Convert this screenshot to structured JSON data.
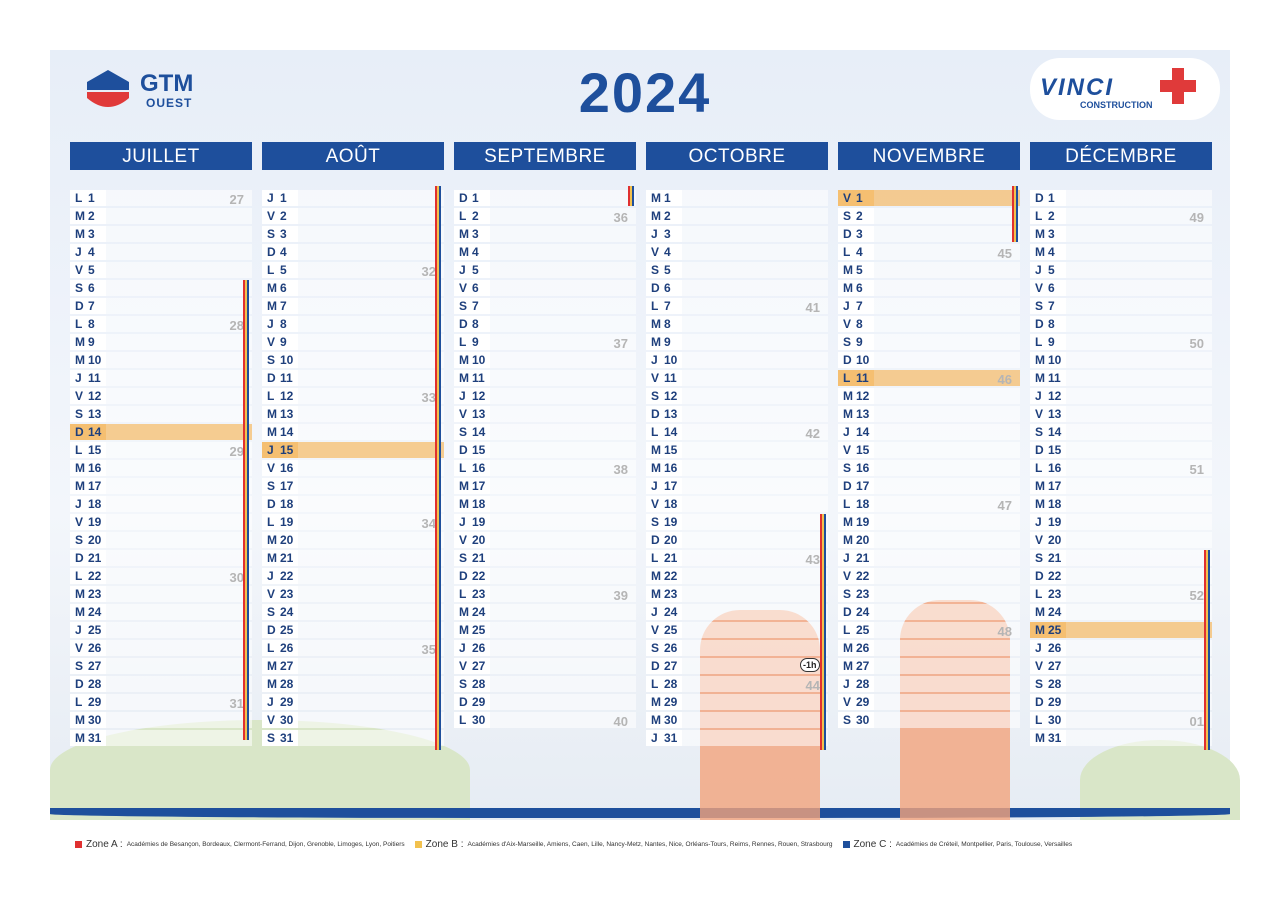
{
  "header": {
    "left_logo": {
      "name": "GTM",
      "sub": "OUEST"
    },
    "year": "2024",
    "right_logo": {
      "name": "VINCI",
      "sub": "CONSTRUCTION"
    }
  },
  "months": [
    {
      "name": "JUILLET",
      "days": [
        {
          "d": "L",
          "n": 1,
          "w": "27"
        },
        {
          "d": "M",
          "n": 2
        },
        {
          "d": "M",
          "n": 3
        },
        {
          "d": "J",
          "n": 4
        },
        {
          "d": "V",
          "n": 5
        },
        {
          "d": "S",
          "n": 6
        },
        {
          "d": "D",
          "n": 7
        },
        {
          "d": "L",
          "n": 8,
          "w": "28"
        },
        {
          "d": "M",
          "n": 9
        },
        {
          "d": "M",
          "n": 10
        },
        {
          "d": "J",
          "n": 11
        },
        {
          "d": "V",
          "n": 12
        },
        {
          "d": "S",
          "n": 13
        },
        {
          "d": "D",
          "n": 14,
          "ferie": true
        },
        {
          "d": "L",
          "n": 15,
          "w": "29"
        },
        {
          "d": "M",
          "n": 16
        },
        {
          "d": "M",
          "n": 17
        },
        {
          "d": "J",
          "n": 18
        },
        {
          "d": "V",
          "n": 19
        },
        {
          "d": "S",
          "n": 20
        },
        {
          "d": "D",
          "n": 21
        },
        {
          "d": "L",
          "n": 22,
          "w": "30"
        },
        {
          "d": "M",
          "n": 23
        },
        {
          "d": "M",
          "n": 24
        },
        {
          "d": "J",
          "n": 25
        },
        {
          "d": "V",
          "n": 26
        },
        {
          "d": "S",
          "n": 27
        },
        {
          "d": "D",
          "n": 28
        },
        {
          "d": "L",
          "n": 29,
          "w": "31"
        },
        {
          "d": "M",
          "n": 30
        },
        {
          "d": "M",
          "n": 31
        }
      ]
    },
    {
      "name": "AOÛT",
      "days": [
        {
          "d": "J",
          "n": 1
        },
        {
          "d": "V",
          "n": 2
        },
        {
          "d": "S",
          "n": 3
        },
        {
          "d": "D",
          "n": 4
        },
        {
          "d": "L",
          "n": 5,
          "w": "32"
        },
        {
          "d": "M",
          "n": 6
        },
        {
          "d": "M",
          "n": 7
        },
        {
          "d": "J",
          "n": 8
        },
        {
          "d": "V",
          "n": 9
        },
        {
          "d": "S",
          "n": 10
        },
        {
          "d": "D",
          "n": 11
        },
        {
          "d": "L",
          "n": 12,
          "w": "33"
        },
        {
          "d": "M",
          "n": 13
        },
        {
          "d": "M",
          "n": 14
        },
        {
          "d": "J",
          "n": 15,
          "ferie": true
        },
        {
          "d": "V",
          "n": 16
        },
        {
          "d": "S",
          "n": 17
        },
        {
          "d": "D",
          "n": 18
        },
        {
          "d": "L",
          "n": 19,
          "w": "34"
        },
        {
          "d": "M",
          "n": 20
        },
        {
          "d": "M",
          "n": 21
        },
        {
          "d": "J",
          "n": 22
        },
        {
          "d": "V",
          "n": 23
        },
        {
          "d": "S",
          "n": 24
        },
        {
          "d": "D",
          "n": 25
        },
        {
          "d": "L",
          "n": 26,
          "w": "35"
        },
        {
          "d": "M",
          "n": 27
        },
        {
          "d": "M",
          "n": 28
        },
        {
          "d": "J",
          "n": 29
        },
        {
          "d": "V",
          "n": 30
        },
        {
          "d": "S",
          "n": 31
        }
      ]
    },
    {
      "name": "SEPTEMBRE",
      "days": [
        {
          "d": "D",
          "n": 1
        },
        {
          "d": "L",
          "n": 2,
          "w": "36"
        },
        {
          "d": "M",
          "n": 3
        },
        {
          "d": "M",
          "n": 4
        },
        {
          "d": "J",
          "n": 5
        },
        {
          "d": "V",
          "n": 6
        },
        {
          "d": "S",
          "n": 7
        },
        {
          "d": "D",
          "n": 8
        },
        {
          "d": "L",
          "n": 9,
          "w": "37"
        },
        {
          "d": "M",
          "n": 10
        },
        {
          "d": "M",
          "n": 11
        },
        {
          "d": "J",
          "n": 12
        },
        {
          "d": "V",
          "n": 13
        },
        {
          "d": "S",
          "n": 14
        },
        {
          "d": "D",
          "n": 15
        },
        {
          "d": "L",
          "n": 16,
          "w": "38"
        },
        {
          "d": "M",
          "n": 17
        },
        {
          "d": "M",
          "n": 18
        },
        {
          "d": "J",
          "n": 19
        },
        {
          "d": "V",
          "n": 20
        },
        {
          "d": "S",
          "n": 21
        },
        {
          "d": "D",
          "n": 22
        },
        {
          "d": "L",
          "n": 23,
          "w": "39"
        },
        {
          "d": "M",
          "n": 24
        },
        {
          "d": "M",
          "n": 25
        },
        {
          "d": "J",
          "n": 26
        },
        {
          "d": "V",
          "n": 27
        },
        {
          "d": "S",
          "n": 28
        },
        {
          "d": "D",
          "n": 29
        },
        {
          "d": "L",
          "n": 30,
          "w": "40"
        }
      ]
    },
    {
      "name": "OCTOBRE",
      "days": [
        {
          "d": "M",
          "n": 1
        },
        {
          "d": "M",
          "n": 2
        },
        {
          "d": "J",
          "n": 3
        },
        {
          "d": "V",
          "n": 4
        },
        {
          "d": "S",
          "n": 5
        },
        {
          "d": "D",
          "n": 6
        },
        {
          "d": "L",
          "n": 7,
          "w": "41"
        },
        {
          "d": "M",
          "n": 8
        },
        {
          "d": "M",
          "n": 9
        },
        {
          "d": "J",
          "n": 10
        },
        {
          "d": "V",
          "n": 11
        },
        {
          "d": "S",
          "n": 12
        },
        {
          "d": "D",
          "n": 13
        },
        {
          "d": "L",
          "n": 14,
          "w": "42"
        },
        {
          "d": "M",
          "n": 15
        },
        {
          "d": "M",
          "n": 16
        },
        {
          "d": "J",
          "n": 17
        },
        {
          "d": "V",
          "n": 18
        },
        {
          "d": "S",
          "n": 19
        },
        {
          "d": "D",
          "n": 20
        },
        {
          "d": "L",
          "n": 21,
          "w": "43"
        },
        {
          "d": "M",
          "n": 22
        },
        {
          "d": "M",
          "n": 23
        },
        {
          "d": "J",
          "n": 24
        },
        {
          "d": "V",
          "n": 25
        },
        {
          "d": "S",
          "n": 26
        },
        {
          "d": "D",
          "n": 27,
          "note": "-1h"
        },
        {
          "d": "L",
          "n": 28,
          "w": "44"
        },
        {
          "d": "M",
          "n": 29
        },
        {
          "d": "M",
          "n": 30
        },
        {
          "d": "J",
          "n": 31
        }
      ]
    },
    {
      "name": "NOVEMBRE",
      "days": [
        {
          "d": "V",
          "n": 1,
          "ferie": true
        },
        {
          "d": "S",
          "n": 2
        },
        {
          "d": "D",
          "n": 3
        },
        {
          "d": "L",
          "n": 4,
          "w": "45"
        },
        {
          "d": "M",
          "n": 5
        },
        {
          "d": "M",
          "n": 6
        },
        {
          "d": "J",
          "n": 7
        },
        {
          "d": "V",
          "n": 8
        },
        {
          "d": "S",
          "n": 9
        },
        {
          "d": "D",
          "n": 10
        },
        {
          "d": "L",
          "n": 11,
          "w": "46",
          "ferie": true
        },
        {
          "d": "M",
          "n": 12
        },
        {
          "d": "M",
          "n": 13
        },
        {
          "d": "J",
          "n": 14
        },
        {
          "d": "V",
          "n": 15
        },
        {
          "d": "S",
          "n": 16
        },
        {
          "d": "D",
          "n": 17
        },
        {
          "d": "L",
          "n": 18,
          "w": "47"
        },
        {
          "d": "M",
          "n": 19
        },
        {
          "d": "M",
          "n": 20
        },
        {
          "d": "J",
          "n": 21
        },
        {
          "d": "V",
          "n": 22
        },
        {
          "d": "S",
          "n": 23
        },
        {
          "d": "D",
          "n": 24
        },
        {
          "d": "L",
          "n": 25,
          "w": "48"
        },
        {
          "d": "M",
          "n": 26
        },
        {
          "d": "M",
          "n": 27
        },
        {
          "d": "J",
          "n": 28
        },
        {
          "d": "V",
          "n": 29
        },
        {
          "d": "S",
          "n": 30
        }
      ]
    },
    {
      "name": "DÉCEMBRE",
      "days": [
        {
          "d": "D",
          "n": 1
        },
        {
          "d": "L",
          "n": 2,
          "w": "49"
        },
        {
          "d": "M",
          "n": 3
        },
        {
          "d": "M",
          "n": 4
        },
        {
          "d": "J",
          "n": 5
        },
        {
          "d": "V",
          "n": 6
        },
        {
          "d": "S",
          "n": 7
        },
        {
          "d": "D",
          "n": 8
        },
        {
          "d": "L",
          "n": 9,
          "w": "50"
        },
        {
          "d": "M",
          "n": 10
        },
        {
          "d": "M",
          "n": 11
        },
        {
          "d": "J",
          "n": 12
        },
        {
          "d": "V",
          "n": 13
        },
        {
          "d": "S",
          "n": 14
        },
        {
          "d": "D",
          "n": 15
        },
        {
          "d": "L",
          "n": 16,
          "w": "51"
        },
        {
          "d": "M",
          "n": 17
        },
        {
          "d": "M",
          "n": 18
        },
        {
          "d": "J",
          "n": 19
        },
        {
          "d": "V",
          "n": 20
        },
        {
          "d": "S",
          "n": 21
        },
        {
          "d": "D",
          "n": 22
        },
        {
          "d": "L",
          "n": 23,
          "w": "52"
        },
        {
          "d": "M",
          "n": 24
        },
        {
          "d": "M",
          "n": 25,
          "ferie": true
        },
        {
          "d": "J",
          "n": 26
        },
        {
          "d": "V",
          "n": 27
        },
        {
          "d": "S",
          "n": 28
        },
        {
          "d": "D",
          "n": 29
        },
        {
          "d": "L",
          "n": 30,
          "w": "01"
        },
        {
          "d": "M",
          "n": 31
        }
      ]
    }
  ],
  "legend": [
    {
      "zone": "Zone A :",
      "color": "#e03030",
      "text": "Académies de Besançon, Bordeaux, Clermont-Ferrand, Dijon, Grenoble, Limoges, Lyon, Poitiers"
    },
    {
      "zone": "Zone B :",
      "color": "#f2c14e",
      "text": "Académies d'Aix-Marseille, Amiens, Caen, Lille, Nancy-Metz, Nantes, Nice, Orléans-Tours, Reims, Rennes, Rouen, Strasbourg"
    },
    {
      "zone": "Zone C :",
      "color": "#1e4f9c",
      "text": "Académies de Créteil, Montpellier, Paris, Toulouse, Versailles"
    }
  ]
}
